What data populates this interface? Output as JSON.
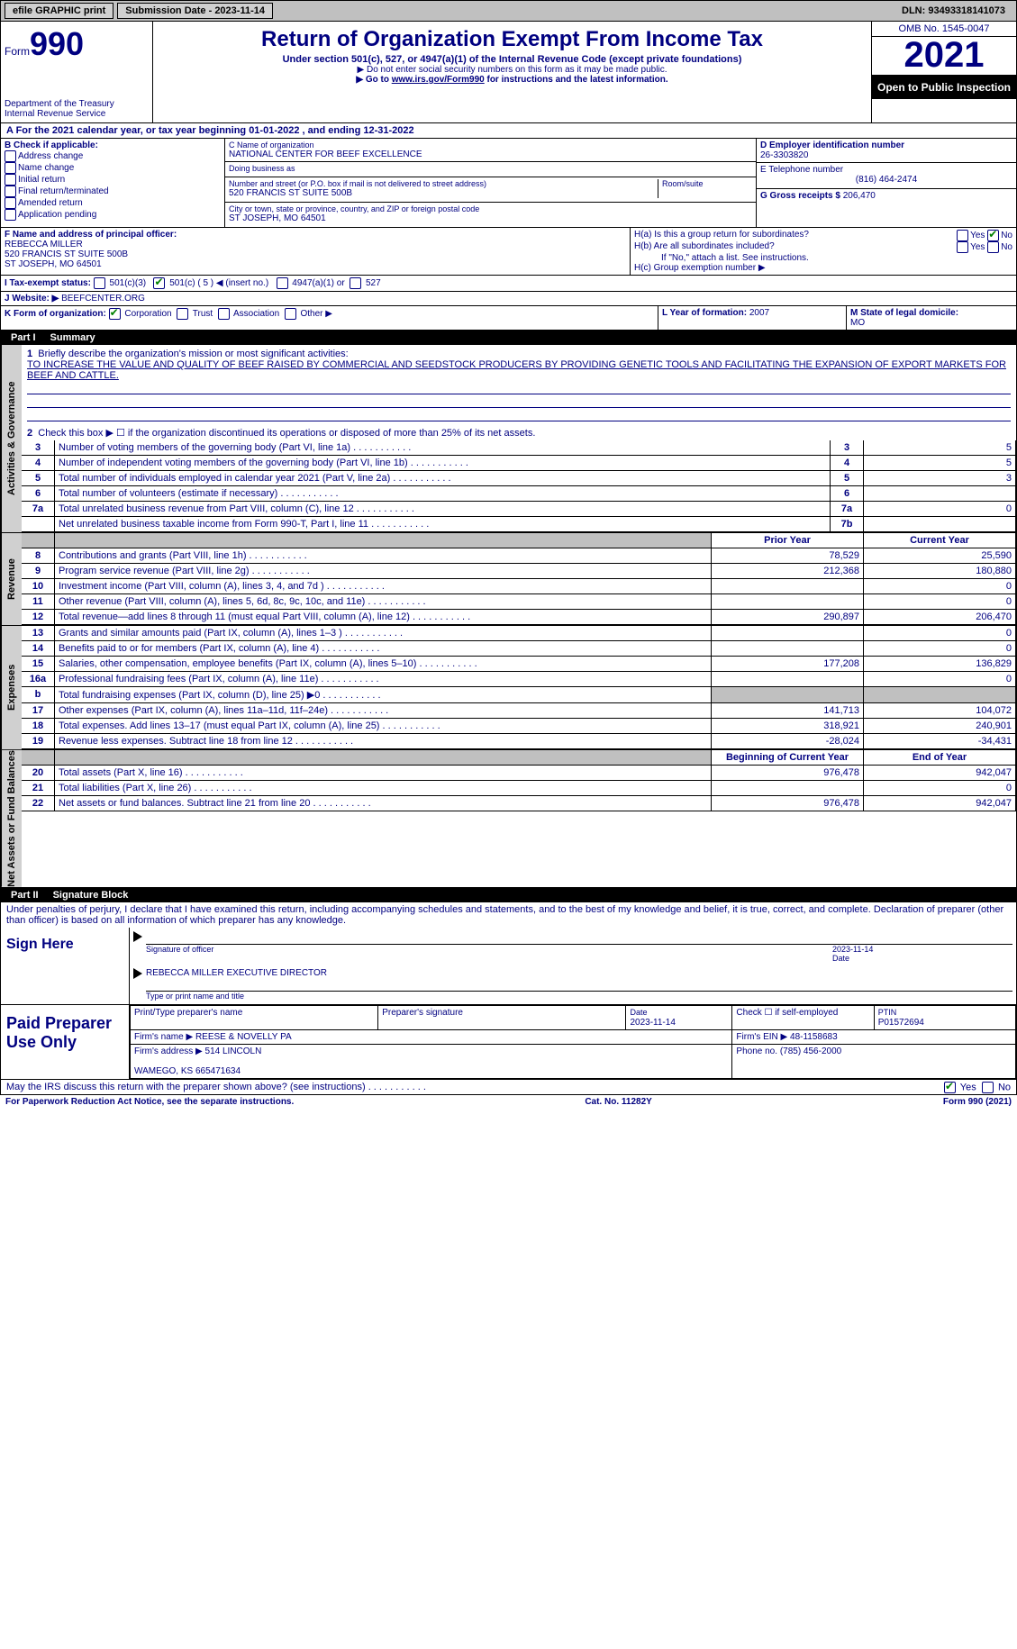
{
  "topbar": {
    "efile": "efile GRAPHIC print",
    "submission": "Submission Date - 2023-11-14",
    "dln": "DLN: 93493318141073"
  },
  "header": {
    "form_word": "Form",
    "form_no": "990",
    "dept": "Department of the Treasury\nInternal Revenue Service",
    "title": "Return of Organization Exempt From Income Tax",
    "subtitle": "Under section 501(c), 527, or 4947(a)(1) of the Internal Revenue Code (except private foundations)",
    "note1": "▶ Do not enter social security numbers on this form as it may be made public.",
    "note2_pre": "▶ Go to ",
    "note2_link": "www.irs.gov/Form990",
    "note2_post": " for instructions and the latest information.",
    "omb": "OMB No. 1545-0047",
    "year": "2021",
    "inspect": "Open to Public Inspection"
  },
  "A": {
    "text": "A For the 2021 calendar year, or tax year beginning 01-01-2022   , and ending 12-31-2022"
  },
  "B": {
    "label": "B Check if applicable:",
    "opts": [
      "Address change",
      "Name change",
      "Initial return",
      "Final return/terminated",
      "Amended return",
      "Application pending"
    ]
  },
  "C": {
    "name_label": "C Name of organization",
    "name": "NATIONAL CENTER FOR BEEF EXCELLENCE",
    "dba_label": "Doing business as",
    "dba": "",
    "addr_label": "Number and street (or P.O. box if mail is not delivered to street address)",
    "room_label": "Room/suite",
    "addr": "520 FRANCIS ST SUITE 500B",
    "city_label": "City or town, state or province, country, and ZIP or foreign postal code",
    "city": "ST JOSEPH, MO  64501"
  },
  "D": {
    "label": "D Employer identification number",
    "value": "26-3303820"
  },
  "E": {
    "label": "E Telephone number",
    "value": "(816) 464-2474"
  },
  "G": {
    "label": "G Gross receipts $",
    "value": "206,470"
  },
  "F": {
    "label": "F Name and address of principal officer:",
    "name": "REBECCA MILLER",
    "addr1": "520 FRANCIS ST SUITE 500B",
    "addr2": "ST JOSEPH, MO  64501"
  },
  "H": {
    "a": "H(a)  Is this a group return for subordinates?",
    "b": "H(b)  Are all subordinates included?",
    "b_note": "If \"No,\" attach a list. See instructions.",
    "c": "H(c)  Group exemption number ▶",
    "yes": "Yes",
    "no": "No"
  },
  "I": {
    "label": "I   Tax-exempt status:",
    "o1": "501(c)(3)",
    "o2": "501(c) ( 5 ) ◀ (insert no.)",
    "o3": "4947(a)(1) or",
    "o4": "527"
  },
  "J": {
    "label": "J   Website: ▶",
    "value": "BEEFCENTER.ORG"
  },
  "K": {
    "label": "K Form of organization:",
    "opts": [
      "Corporation",
      "Trust",
      "Association",
      "Other ▶"
    ]
  },
  "L": {
    "label": "L Year of formation:",
    "value": "2007"
  },
  "M": {
    "label": "M State of legal domicile:",
    "value": "MO"
  },
  "part1": {
    "label": "Part I",
    "title": "Summary"
  },
  "summary": {
    "l1_label": "Briefly describe the organization's mission or most significant activities:",
    "l1_text": "TO INCREASE THE VALUE AND QUALITY OF BEEF RAISED BY COMMERCIAL AND SEEDSTOCK PRODUCERS BY PROVIDING GENETIC TOOLS AND FACILITATING THE EXPANSION OF EXPORT MARKETS FOR BEEF AND CATTLE.",
    "l2": "Check this box ▶ ☐ if the organization discontinued its operations or disposed of more than 25% of its net assets.",
    "lines": [
      {
        "n": "3",
        "d": "Number of voting members of the governing body (Part VI, line 1a)",
        "box": "3",
        "v": "5"
      },
      {
        "n": "4",
        "d": "Number of independent voting members of the governing body (Part VI, line 1b)",
        "box": "4",
        "v": "5"
      },
      {
        "n": "5",
        "d": "Total number of individuals employed in calendar year 2021 (Part V, line 2a)",
        "box": "5",
        "v": "3"
      },
      {
        "n": "6",
        "d": "Total number of volunteers (estimate if necessary)",
        "box": "6",
        "v": ""
      },
      {
        "n": "7a",
        "d": "Total unrelated business revenue from Part VIII, column (C), line 12",
        "box": "7a",
        "v": "0"
      },
      {
        "n": "",
        "d": "Net unrelated business taxable income from Form 990-T, Part I, line 11",
        "box": "7b",
        "v": ""
      }
    ],
    "hdr_prior": "Prior Year",
    "hdr_curr": "Current Year",
    "revenue": [
      {
        "n": "8",
        "d": "Contributions and grants (Part VIII, line 1h)",
        "p": "78,529",
        "c": "25,590"
      },
      {
        "n": "9",
        "d": "Program service revenue (Part VIII, line 2g)",
        "p": "212,368",
        "c": "180,880"
      },
      {
        "n": "10",
        "d": "Investment income (Part VIII, column (A), lines 3, 4, and 7d )",
        "p": "",
        "c": "0"
      },
      {
        "n": "11",
        "d": "Other revenue (Part VIII, column (A), lines 5, 6d, 8c, 9c, 10c, and 11e)",
        "p": "",
        "c": "0"
      },
      {
        "n": "12",
        "d": "Total revenue—add lines 8 through 11 (must equal Part VIII, column (A), line 12)",
        "p": "290,897",
        "c": "206,470"
      }
    ],
    "expenses": [
      {
        "n": "13",
        "d": "Grants and similar amounts paid (Part IX, column (A), lines 1–3 )",
        "p": "",
        "c": "0"
      },
      {
        "n": "14",
        "d": "Benefits paid to or for members (Part IX, column (A), line 4)",
        "p": "",
        "c": "0"
      },
      {
        "n": "15",
        "d": "Salaries, other compensation, employee benefits (Part IX, column (A), lines 5–10)",
        "p": "177,208",
        "c": "136,829"
      },
      {
        "n": "16a",
        "d": "Professional fundraising fees (Part IX, column (A), line 11e)",
        "p": "",
        "c": "0"
      },
      {
        "n": "b",
        "d": "Total fundraising expenses (Part IX, column (D), line 25) ▶0",
        "p": "shade",
        "c": "shade"
      },
      {
        "n": "17",
        "d": "Other expenses (Part IX, column (A), lines 11a–11d, 11f–24e)",
        "p": "141,713",
        "c": "104,072"
      },
      {
        "n": "18",
        "d": "Total expenses. Add lines 13–17 (must equal Part IX, column (A), line 25)",
        "p": "318,921",
        "c": "240,901"
      },
      {
        "n": "19",
        "d": "Revenue less expenses. Subtract line 18 from line 12",
        "p": "-28,024",
        "c": "-34,431"
      }
    ],
    "hdr_begin": "Beginning of Current Year",
    "hdr_end": "End of Year",
    "netassets": [
      {
        "n": "20",
        "d": "Total assets (Part X, line 16)",
        "p": "976,478",
        "c": "942,047"
      },
      {
        "n": "21",
        "d": "Total liabilities (Part X, line 26)",
        "p": "",
        "c": "0"
      },
      {
        "n": "22",
        "d": "Net assets or fund balances. Subtract line 21 from line 20",
        "p": "976,478",
        "c": "942,047"
      }
    ]
  },
  "side": {
    "act": "Activities & Governance",
    "rev": "Revenue",
    "exp": "Expenses",
    "net": "Net Assets or Fund Balances"
  },
  "part2": {
    "label": "Part II",
    "title": "Signature Block"
  },
  "sig": {
    "declare": "Under penalties of perjury, I declare that I have examined this return, including accompanying schedules and statements, and to the best of my knowledge and belief, it is true, correct, and complete. Declaration of preparer (other than officer) is based on all information of which preparer has any knowledge.",
    "sign_here": "Sign Here",
    "sig_officer": "Signature of officer",
    "date_lbl": "Date",
    "date": "2023-11-14",
    "name": "REBECCA MILLER  EXECUTIVE DIRECTOR",
    "name_lbl": "Type or print name and title",
    "paid": "Paid Preparer Use Only",
    "p_name_lbl": "Print/Type preparer's name",
    "p_sig_lbl": "Preparer's signature",
    "p_date_lbl": "Date",
    "p_date": "2023-11-14",
    "p_check": "Check ☐ if self-employed",
    "ptin_lbl": "PTIN",
    "ptin": "P01572694",
    "firm_name_lbl": "Firm's name    ▶",
    "firm_name": "REESE & NOVELLY PA",
    "firm_ein_lbl": "Firm's EIN ▶",
    "firm_ein": "48-1158683",
    "firm_addr_lbl": "Firm's address ▶",
    "firm_addr": "514 LINCOLN\n\nWAMEGO, KS  665471634",
    "phone_lbl": "Phone no.",
    "phone": "(785) 456-2000",
    "discuss": "May the IRS discuss this return with the preparer shown above? (see instructions)"
  },
  "footer": {
    "left": "For Paperwork Reduction Act Notice, see the separate instructions.",
    "mid": "Cat. No. 11282Y",
    "right": "Form 990 (2021)"
  }
}
